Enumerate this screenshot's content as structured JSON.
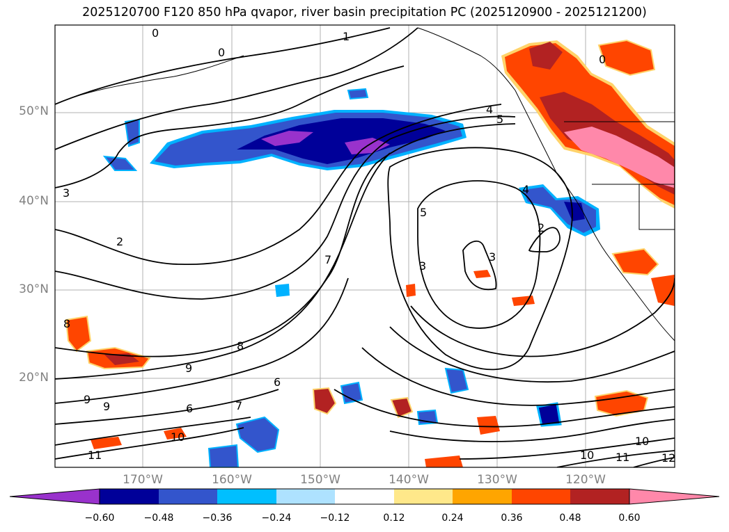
{
  "title": "2025120700 F120 850 hPa qvapor, river basin precipitation PC (2025120900 - 2025121200)",
  "map": {
    "lat_labels": [
      "50°N",
      "40°N",
      "30°N",
      "20°N"
    ],
    "lon_labels": [
      "170°W",
      "160°W",
      "150°W",
      "140°W",
      "130°W",
      "120°W"
    ],
    "contour_labels": [
      "0",
      "0",
      "0",
      "1",
      "2",
      "2",
      "3",
      "3",
      "3",
      "4",
      "4",
      "5",
      "5",
      "6",
      "6",
      "7",
      "7",
      "8",
      "8",
      "9",
      "9",
      "9",
      "10",
      "10",
      "10",
      "11",
      "11",
      "12"
    ],
    "colors": {
      "land_precip_high": "#ff88aa",
      "land_precip_red": "#b22222",
      "land_precip_orange": "#ff4500",
      "moist_purple": "#9932cc",
      "moist_navy": "#000099",
      "moist_blue": "#3355cc",
      "moist_cyan": "#00b2ff"
    }
  },
  "colorbar": {
    "ticks": [
      "−0.60",
      "−0.48",
      "−0.36",
      "−0.24",
      "−0.12",
      "0.12",
      "0.24",
      "0.36",
      "0.48",
      "0.60"
    ],
    "colors": [
      "#9932cc",
      "#000099",
      "#3355cc",
      "#00bfff",
      "#aee2ff",
      "#ffffff",
      "#ffe88a",
      "#ffa500",
      "#ff4500",
      "#b22222",
      "#ff88aa"
    ]
  }
}
